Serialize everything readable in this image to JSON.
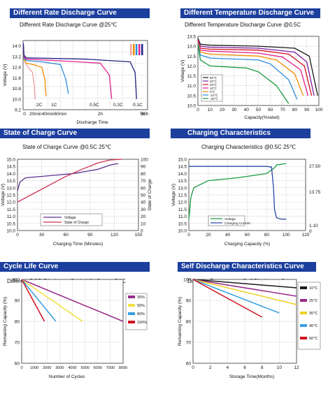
{
  "panels": [
    {
      "id": "p1",
      "header": "Different Rate Discharge Curve",
      "subtitle": "Different Rate Discharge Curve @25℃"
    },
    {
      "id": "p2",
      "header": "Different Temperature Discharge Curve",
      "subtitle": "Different Temperature Discharge Curve @0.5C"
    },
    {
      "id": "p3",
      "header": "State of Charge Curve",
      "subtitle": "State of Charge Curve @0.5C 25℃"
    },
    {
      "id": "p4",
      "header": "Charging Characteristics",
      "subtitle": "Charging Characteristics @0.5C 25℃"
    },
    {
      "id": "p5",
      "header": "Cycle Life Curve",
      "subtitle": "Different DOD Discharge Cycle Life Curve @1C"
    },
    {
      "id": "p6",
      "header": "Self Discharge Characteristics Curve",
      "subtitle": "Different Temperature Self Discharge Curve"
    }
  ],
  "colors": {
    "header_bg": "#1c3f9e",
    "grid": "#9a9a9a"
  },
  "chart_data": [
    {
      "type": "line",
      "ylabel": "Voltage (V)",
      "xlabel": "Discharge Time",
      "ylim": [
        9.2,
        14.4
      ],
      "y_ticks": [
        9.2,
        10.0,
        10.8,
        11.6,
        12.4,
        13.2,
        14.0
      ],
      "x_tick_labels": [
        "0",
        "20min",
        "40min",
        "60min",
        "2h",
        "5h",
        "10h"
      ],
      "curve_labels": [
        "2C",
        "1C",
        "0.5C",
        "0.2C",
        "0.1C"
      ],
      "series": [
        {
          "name": "2C",
          "color": "#f2a3a3",
          "points": [
            [
              0.3,
              14.2
            ],
            [
              1.5,
              13.0
            ],
            [
              5,
              12.6
            ],
            [
              10,
              12.3
            ],
            [
              15,
              12.0
            ],
            [
              18,
              11.0
            ],
            [
              19,
              10.0
            ]
          ]
        },
        {
          "name": "1C",
          "color": "#f28c00",
          "points": [
            [
              0.3,
              14.2
            ],
            [
              1.5,
              13.0
            ],
            [
              5,
              12.7
            ],
            [
              15,
              12.6
            ],
            [
              30,
              12.4
            ],
            [
              35,
              11.5
            ],
            [
              37,
              10.2
            ]
          ]
        },
        {
          "name": "0.5C",
          "color": "#2e8de0",
          "points": [
            [
              0.3,
              14.2
            ],
            [
              1.5,
              13.1
            ],
            [
              5,
              12.9
            ],
            [
              30,
              12.8
            ],
            [
              60,
              12.6
            ],
            [
              68,
              11.5
            ],
            [
              72,
              10.4
            ]
          ]
        },
        {
          "name": "0.2C",
          "color": "#e0208a",
          "points": [
            [
              0.3,
              14.2
            ],
            [
              1.5,
              13.2
            ],
            [
              5,
              13.0
            ],
            [
              50,
              12.9
            ],
            [
              120,
              12.7
            ],
            [
              140,
              11.8
            ],
            [
              145,
              10.0
            ]
          ]
        },
        {
          "name": "0.1C",
          "color": "#222288",
          "points": [
            [
              0.3,
              14.2
            ],
            [
              1.5,
              13.3
            ],
            [
              5,
              13.1
            ],
            [
              100,
              13.0
            ],
            [
              200,
              12.8
            ],
            [
              240,
              12.0
            ],
            [
              252,
              10.0
            ]
          ]
        }
      ]
    },
    {
      "type": "line",
      "ylabel": "Voltage (V)",
      "xlabel": "Capacity(%rated)",
      "ylim": [
        10.0,
        13.5
      ],
      "xlim": [
        0,
        100
      ],
      "y_ticks": [
        10.0,
        10.5,
        11.0,
        11.5,
        12.0,
        12.5,
        13.0,
        13.5
      ],
      "x_ticks": [
        0,
        10,
        20,
        30,
        40,
        50,
        60,
        70,
        80,
        90,
        100
      ],
      "x_tick_labels": [
        "0",
        "10",
        "20",
        "30",
        "40",
        "50",
        "60",
        "70",
        "80",
        "90",
        "100"
      ],
      "series": [
        {
          "color": "#1a1a1a",
          "points": [
            [
              0,
              13.4
            ],
            [
              2,
              13.1
            ],
            [
              10,
              13.05
            ],
            [
              50,
              13.0
            ],
            [
              80,
              12.9
            ],
            [
              92,
              12.5
            ],
            [
              99,
              10.5
            ]
          ]
        },
        {
          "color": "#7a1aa0",
          "points": [
            [
              0,
              13.35
            ],
            [
              2,
              13.0
            ],
            [
              10,
              12.95
            ],
            [
              50,
              12.9
            ],
            [
              80,
              12.7
            ],
            [
              90,
              12.2
            ],
            [
              96,
              10.5
            ]
          ]
        },
        {
          "color": "#d01020",
          "points": [
            [
              0,
              13.3
            ],
            [
              2,
              12.9
            ],
            [
              10,
              12.85
            ],
            [
              50,
              12.8
            ],
            [
              75,
              12.6
            ],
            [
              88,
              12.0
            ],
            [
              94,
              10.5
            ]
          ]
        },
        {
          "color": "#e0208a",
          "points": [
            [
              0,
              13.25
            ],
            [
              2,
              12.8
            ],
            [
              10,
              12.75
            ],
            [
              50,
              12.65
            ],
            [
              70,
              12.45
            ],
            [
              85,
              11.8
            ],
            [
              91,
              10.5
            ]
          ]
        },
        {
          "color": "#f28c00",
          "points": [
            [
              0,
              13.2
            ],
            [
              2,
              12.7
            ],
            [
              10,
              12.6
            ],
            [
              50,
              12.5
            ],
            [
              65,
              12.3
            ],
            [
              80,
              11.6
            ],
            [
              87,
              10.5
            ]
          ]
        },
        {
          "color": "#2e8de0",
          "points": [
            [
              0,
              13.15
            ],
            [
              2,
              12.55
            ],
            [
              10,
              12.4
            ],
            [
              50,
              12.3
            ],
            [
              60,
              12.1
            ],
            [
              75,
              11.3
            ],
            [
              82,
              10.3
            ]
          ]
        },
        {
          "color": "#1a9a40",
          "points": [
            [
              0,
              13.1
            ],
            [
              2,
              12.3
            ],
            [
              10,
              12.0
            ],
            [
              40,
              11.9
            ],
            [
              50,
              11.7
            ],
            [
              65,
              11.0
            ],
            [
              75,
              10.1
            ]
          ]
        }
      ],
      "legend_labels": [
        "60℃",
        "40℃",
        "25℃",
        "10℃",
        "0℃",
        "-10℃",
        "-20℃"
      ]
    },
    {
      "type": "line",
      "ylabel": "Voltage (V)",
      "ylabel_right": "State of Charge",
      "xlabel": "Charging Time (Minutes)",
      "ylim": [
        10.0,
        15.0
      ],
      "y2lim": [
        0,
        100
      ],
      "xlim": [
        0,
        150
      ],
      "y_ticks": [
        10.0,
        10.5,
        11.0,
        11.5,
        12.0,
        12.5,
        13.0,
        13.5,
        14.0,
        14.5,
        15.0
      ],
      "y2_ticks": [
        0,
        10,
        20,
        30,
        40,
        50,
        60,
        70,
        80,
        90,
        100
      ],
      "y2_tick_labels": [
        "0",
        "10",
        "20",
        "30",
        "40",
        "50",
        "60",
        "70",
        "80",
        "90",
        "100"
      ],
      "x_ticks": [
        0,
        30,
        60,
        90,
        120,
        150
      ],
      "x_tick_labels": [
        "0",
        "30",
        "60",
        "90",
        "120",
        "150"
      ],
      "series": [
        {
          "name": "Voltage",
          "color": "#5a3090",
          "axis": "left",
          "points": [
            [
              0,
              12.8
            ],
            [
              3,
              13.4
            ],
            [
              10,
              13.7
            ],
            [
              40,
              13.85
            ],
            [
              70,
              14.0
            ],
            [
              100,
              14.3
            ],
            [
              115,
              14.6
            ],
            [
              125,
              14.7
            ]
          ]
        },
        {
          "name": "State of Charge",
          "color": "#d03050",
          "axis": "right",
          "points": [
            [
              0,
              40
            ],
            [
              20,
              52
            ],
            [
              40,
              64
            ],
            [
              60,
              76
            ],
            [
              80,
              86
            ],
            [
              100,
              95
            ],
            [
              115,
              99
            ],
            [
              130,
              100
            ]
          ]
        }
      ],
      "legend": [
        "Voltage",
        "State of Charge"
      ]
    },
    {
      "type": "line",
      "ylabel": "Voltage (V)",
      "xlabel": "Charging Capacity (%)",
      "ylim": [
        10.0,
        15.0
      ],
      "xlim": [
        0,
        120
      ],
      "y_ticks": [
        10.0,
        10.5,
        11.0,
        11.5,
        12.0,
        12.5,
        13.0,
        13.5,
        14.0,
        14.5,
        15.0
      ],
      "x_ticks": [
        0,
        20,
        40,
        60,
        80,
        100,
        120
      ],
      "x_tick_labels": [
        "0",
        "20",
        "40",
        "60",
        "80",
        "100",
        "120"
      ],
      "right_labels": [
        "27.50",
        "13.75",
        "1.10",
        "0"
      ],
      "series": [
        {
          "name": "Voltage",
          "color": "#1a9a40",
          "points": [
            [
              0,
              10.8
            ],
            [
              1,
              11.5
            ],
            [
              2,
              12.3
            ],
            [
              5,
              13.0
            ],
            [
              20,
              13.5
            ],
            [
              50,
              13.7
            ],
            [
              80,
              14.0
            ],
            [
              88,
              14.4
            ],
            [
              90,
              14.6
            ],
            [
              100,
              14.7
            ]
          ]
        },
        {
          "name": "Charging Current",
          "color": "#2a4aa8",
          "points": [
            [
              0,
              14.5
            ],
            [
              80,
              14.5
            ],
            [
              85,
              14.45
            ],
            [
              87,
              13.0
            ],
            [
              88,
              11.5
            ],
            [
              90,
              10.9
            ],
            [
              95,
              10.8
            ],
            [
              100,
              10.8
            ]
          ]
        }
      ],
      "legend": [
        "Voltage",
        "Charging Current"
      ]
    },
    {
      "type": "line",
      "ylabel": "Remaining Capacity (%)",
      "xlabel": "Number of Cycles",
      "ylim": [
        60,
        100
      ],
      "xlim": [
        0,
        8000
      ],
      "y_ticks": [
        60,
        70,
        80,
        90,
        100
      ],
      "x_ticks": [
        0,
        1000,
        2000,
        3000,
        4000,
        5000,
        6000,
        7000,
        8000
      ],
      "x_tick_labels": [
        "0",
        "1000",
        "2000",
        "3000",
        "4000",
        "5000",
        "6000",
        "7000",
        "8000"
      ],
      "series": [
        {
          "name": "30%",
          "color": "#9a2a8a",
          "points": [
            [
              0,
              100
            ],
            [
              8000,
              80
            ]
          ]
        },
        {
          "name": "50%",
          "color": "#f0e040",
          "points": [
            [
              0,
              100
            ],
            [
              4800,
              80
            ]
          ]
        },
        {
          "name": "80%",
          "color": "#38a0e0",
          "points": [
            [
              0,
              100
            ],
            [
              2700,
              80
            ]
          ]
        },
        {
          "name": "100%",
          "color": "#d01020",
          "points": [
            [
              0,
              100
            ],
            [
              1800,
              80
            ]
          ]
        }
      ]
    },
    {
      "type": "line",
      "ylabel": "Remaining Capacity (%)",
      "xlabel": "Storage Time(Months)",
      "ylim": [
        60,
        100
      ],
      "xlim": [
        0,
        12
      ],
      "y_ticks": [
        60,
        70,
        80,
        90,
        100
      ],
      "x_ticks": [
        0,
        2,
        4,
        6,
        8,
        10,
        12
      ],
      "x_tick_labels": [
        "0",
        "2",
        "4",
        "6",
        "8",
        "10",
        "12"
      ],
      "series": [
        {
          "name": "10℃",
          "color": "#1a1a1a",
          "points": [
            [
              0,
              100
            ],
            [
              12,
              96
            ]
          ]
        },
        {
          "name": "25℃",
          "color": "#9a2a8a",
          "points": [
            [
              0,
              100
            ],
            [
              12,
              92
            ]
          ]
        },
        {
          "name": "30℃",
          "color": "#f0d020",
          "points": [
            [
              0,
              100
            ],
            [
              12,
              88
            ]
          ]
        },
        {
          "name": "40℃",
          "color": "#38a0e0",
          "points": [
            [
              0,
              100
            ],
            [
              10,
              84
            ]
          ]
        },
        {
          "name": "50℃",
          "color": "#d01020",
          "points": [
            [
              0,
              100
            ],
            [
              8,
              82
            ]
          ]
        }
      ]
    }
  ]
}
